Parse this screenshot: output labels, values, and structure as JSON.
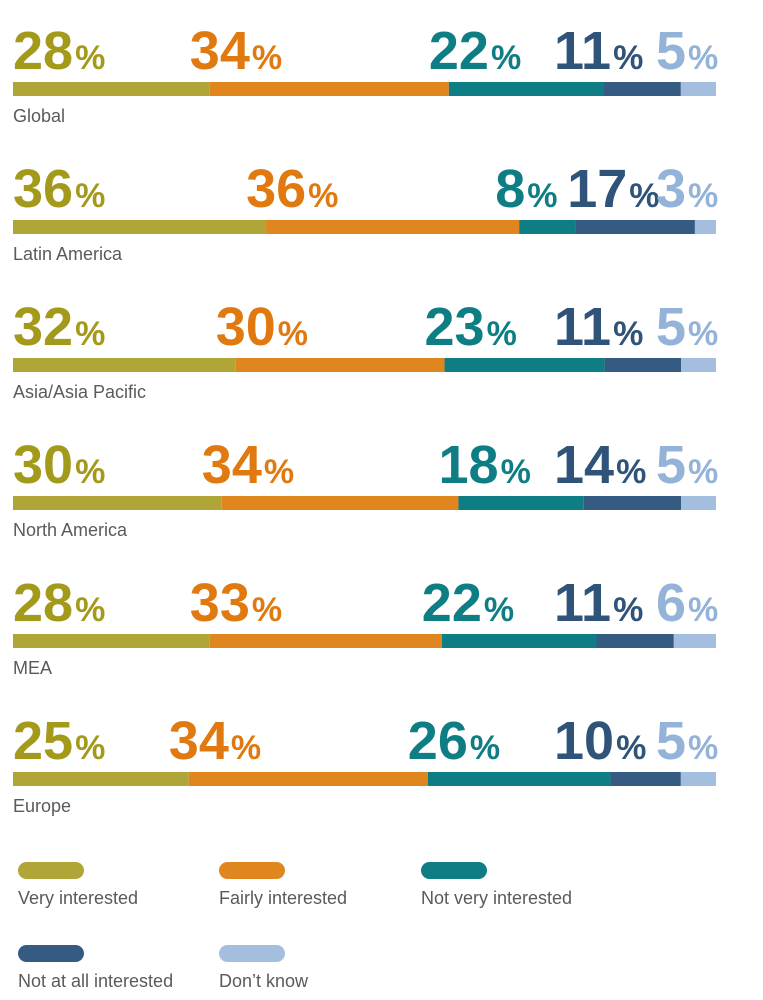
{
  "chart_data": {
    "type": "bar",
    "orientation": "horizontal-stacked-100",
    "xlim": [
      0,
      100
    ],
    "unit": "%",
    "categories": [
      "Global",
      "Latin America",
      "Asia/Asia Pacific",
      "North America",
      "MEA",
      "Europe"
    ],
    "series": [
      {
        "name": "Very interested",
        "color": "#b0a537",
        "values": [
          28,
          36,
          32,
          30,
          28,
          25
        ]
      },
      {
        "name": "Fairly interested",
        "color": "#e0861f",
        "values": [
          34,
          36,
          30,
          34,
          33,
          34
        ]
      },
      {
        "name": "Not very interested",
        "color": "#0e7d84",
        "values": [
          22,
          8,
          23,
          18,
          22,
          26
        ]
      },
      {
        "name": "Not at all interested",
        "color": "#355b82",
        "values": [
          11,
          17,
          11,
          14,
          11,
          10
        ]
      },
      {
        "name": "Don’t know",
        "color": "#a3bedf",
        "values": [
          5,
          3,
          5,
          5,
          6,
          5
        ]
      }
    ],
    "value_label_colors": [
      "#a39a1c",
      "#e07a10",
      "#0e7d84",
      "#2f5379",
      "#93b3d8"
    ],
    "legend_placement": "bottom",
    "grid": false
  }
}
